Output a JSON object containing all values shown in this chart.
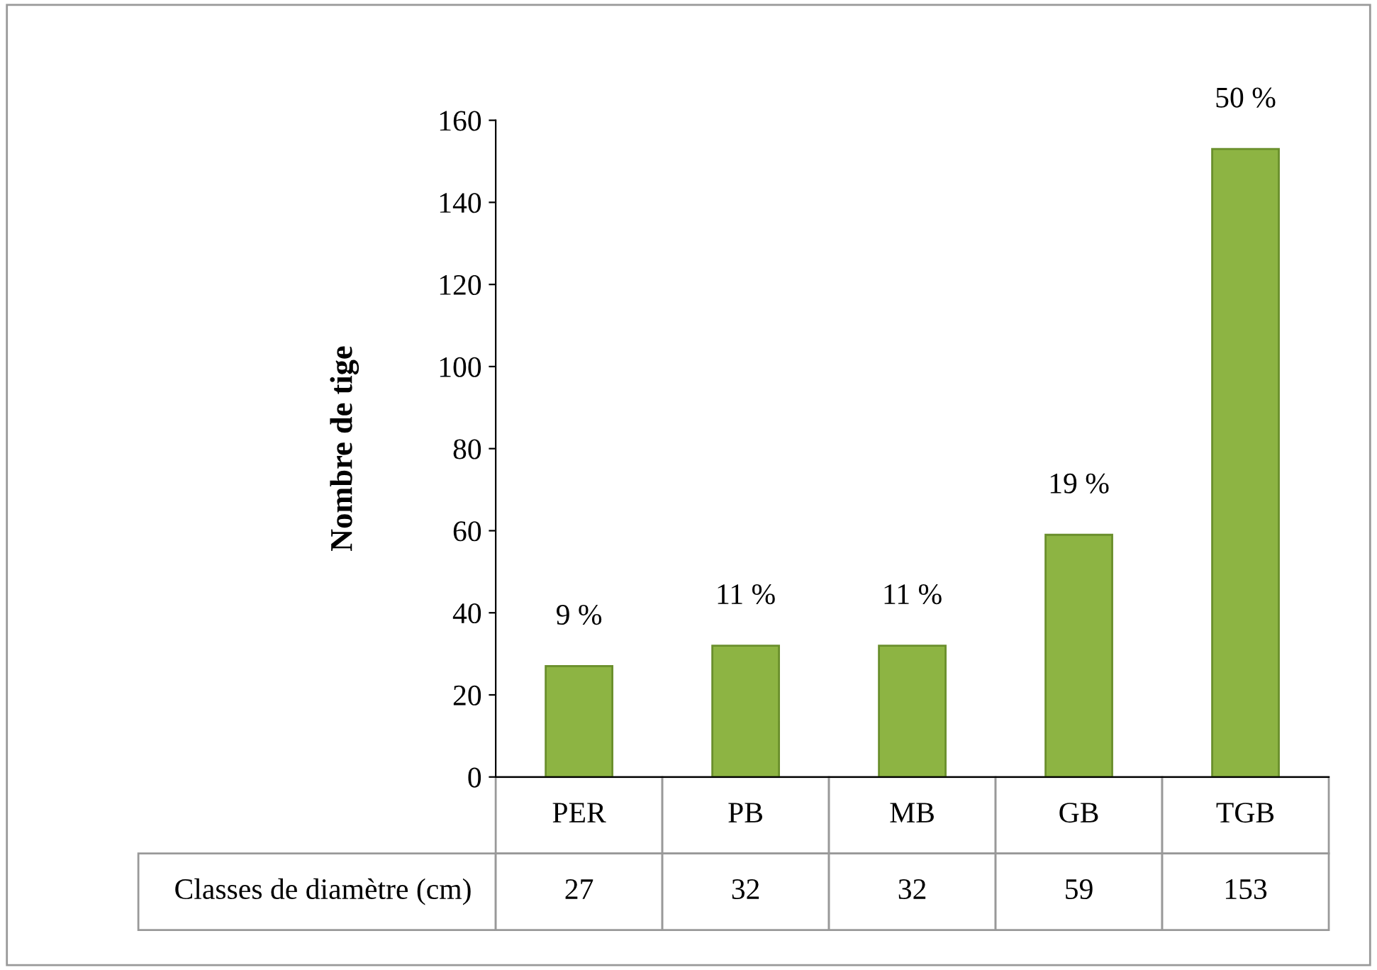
{
  "chart_data": {
    "type": "bar",
    "ylabel": "Nombre de tige",
    "xlabel": "Classes de diamètre (cm)",
    "categories": [
      "PER",
      "PB",
      "MB",
      "GB",
      "TGB"
    ],
    "values": [
      27,
      32,
      32,
      59,
      153
    ],
    "value_labels": [
      "27",
      "32",
      "32",
      "59",
      "153"
    ],
    "annotations": [
      {
        "text": "9 %",
        "x": "PER",
        "y": 27
      },
      {
        "text": "11 %",
        "x": "PB",
        "y": 32
      },
      {
        "text": "11 %",
        "x": "MB",
        "y": 32
      },
      {
        "text": "19 %",
        "x": "GB",
        "y": 59
      },
      {
        "text": "50 %",
        "x": "TGB",
        "y": 153
      }
    ],
    "color": "#8db443",
    "ylim": [
      0,
      160
    ],
    "yticks": [
      0,
      20,
      40,
      60,
      80,
      100,
      120,
      140,
      160
    ],
    "grid": false,
    "legend": false
  }
}
